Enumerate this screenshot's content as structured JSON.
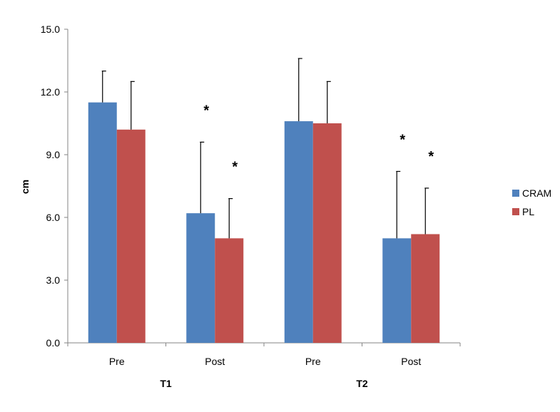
{
  "chart_data": {
    "type": "bar",
    "title": "",
    "xlabel": "",
    "ylabel": "cm",
    "ylim": [
      0,
      15
    ],
    "yticks": [
      "0.0",
      "3.0",
      "6.0",
      "9.0",
      "12.0",
      "15.0"
    ],
    "grid": false,
    "legend_position": "right",
    "categories": [
      "Pre",
      "Post",
      "Pre",
      "Post"
    ],
    "groups": [
      "T1",
      "T2"
    ],
    "series": [
      {
        "name": "CRAM",
        "color": "#4F81BD",
        "values": [
          11.5,
          6.2,
          10.6,
          5.0
        ],
        "error": [
          1.5,
          3.4,
          3.0,
          3.2
        ],
        "significant": [
          false,
          true,
          false,
          true
        ]
      },
      {
        "name": "PL",
        "color": "#C0504D",
        "values": [
          10.2,
          5.0,
          10.5,
          5.2
        ],
        "error": [
          2.3,
          1.9,
          2.0,
          2.2
        ],
        "significant": [
          false,
          true,
          false,
          true
        ]
      }
    ],
    "annotation_symbol": "*"
  }
}
